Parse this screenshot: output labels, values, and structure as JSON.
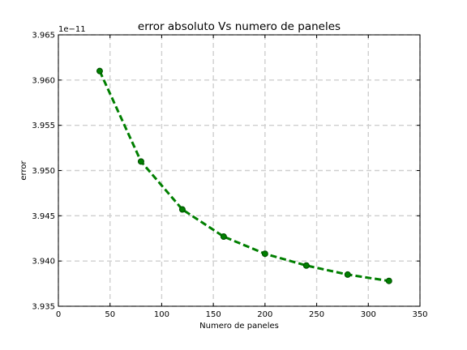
{
  "chart_data": {
    "type": "line",
    "title": "error absoluto Vs numero de paneles",
    "xlabel": "Numero de paneles",
    "ylabel": "error",
    "y_offset_label": "1e−11",
    "xlim": [
      0,
      350
    ],
    "ylim": [
      3.935,
      3.965
    ],
    "xticks": [
      0,
      50,
      100,
      150,
      200,
      250,
      300,
      350
    ],
    "yticks": [
      3.935,
      3.94,
      3.945,
      3.95,
      3.955,
      3.96,
      3.965
    ],
    "xtick_labels": [
      "0",
      "50",
      "100",
      "150",
      "200",
      "250",
      "300",
      "350"
    ],
    "ytick_labels": [
      "3.935",
      "3.940",
      "3.945",
      "3.950",
      "3.955",
      "3.960",
      "3.965"
    ],
    "grid": true,
    "line_style": "dashed",
    "marker": "circle",
    "color": "#007f00",
    "series": [
      {
        "x": [
          40,
          80,
          120,
          160,
          200,
          240,
          280,
          320
        ],
        "y": [
          3.961,
          3.951,
          3.9457,
          3.9427,
          3.9408,
          3.9395,
          3.9385,
          3.9378
        ]
      }
    ]
  }
}
